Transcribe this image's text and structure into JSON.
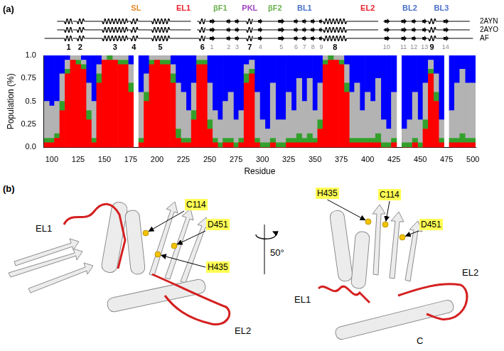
{
  "chart_data": {
    "type": "bar",
    "panel": "(a)",
    "x_label": "Residue",
    "y_label": "Population (%)",
    "stacked": true,
    "grid": false,
    "xlim": [
      92.5,
      502.5
    ],
    "xticks": [
      100,
      125,
      150,
      175,
      200,
      225,
      250,
      275,
      300,
      325,
      350,
      375,
      400,
      425,
      450,
      475,
      500
    ],
    "ylim": [
      0,
      1
    ],
    "yticks": [
      {
        "value": 0,
        "label": "0.0"
      },
      0.25,
      0.5,
      0.75,
      {
        "value": 1,
        "label": "1.0"
      }
    ],
    "x": [
      95,
      100,
      105,
      110,
      115,
      120,
      125,
      130,
      135,
      140,
      145,
      150,
      155,
      160,
      165,
      170,
      175,
      180,
      185,
      190,
      195,
      200,
      205,
      210,
      215,
      220,
      225,
      230,
      235,
      240,
      245,
      250,
      255,
      260,
      265,
      270,
      275,
      280,
      285,
      290,
      295,
      300,
      305,
      310,
      315,
      320,
      325,
      330,
      335,
      340,
      345,
      350,
      355,
      360,
      365,
      370,
      375,
      380,
      385,
      390,
      395,
      400,
      405,
      410,
      415,
      420,
      425,
      430,
      435,
      440,
      445,
      450,
      455,
      460,
      465,
      470,
      475,
      480,
      485,
      490,
      495,
      500
    ],
    "series": [
      {
        "color": "#ff0000",
        "values": [
          0.05,
          0.05,
          0.1,
          0.4,
          0.8,
          0.95,
          0.9,
          0.85,
          0.3,
          0.05,
          0.7,
          0.95,
          0.95,
          0.95,
          0.9,
          0.9,
          0.6,
          null,
          0.05,
          0.5,
          0.9,
          0.95,
          0.9,
          0.9,
          0.7,
          0.1,
          0.05,
          0.05,
          0.3,
          0.9,
          0.9,
          0.2,
          0.05,
          0,
          0.05,
          0.05,
          0,
          0.05,
          0.7,
          0.8,
          0.05,
          0,
          0,
          0.05,
          0,
          0,
          0.05,
          0.05,
          0.05,
          0.05,
          0.05,
          0.05,
          0.2,
          0.9,
          0.95,
          0.95,
          0.9,
          0.6,
          0.05,
          0.05,
          0.05,
          0.05,
          0.05,
          0.05,
          0,
          0,
          0.05,
          null,
          0,
          0,
          0.05,
          0,
          0.2,
          0.8,
          0.5,
          0.05,
          null,
          0.05,
          0.05,
          0.05,
          0.05,
          0.05
        ]
      },
      {
        "color": "#33a02c",
        "values": [
          0.05,
          0.05,
          0.05,
          0.1,
          0.05,
          0,
          0.05,
          0.05,
          0.1,
          0.05,
          0.1,
          0,
          0.05,
          0,
          0.05,
          0.05,
          0.1,
          null,
          0.05,
          0.1,
          0.05,
          0,
          0.05,
          0.05,
          0.1,
          0.1,
          0.05,
          0.05,
          0.1,
          0.05,
          0.05,
          0.1,
          0.05,
          0.05,
          0.05,
          0.05,
          0.05,
          0.05,
          0.1,
          0.05,
          0.05,
          0.05,
          0.05,
          0.05,
          0.05,
          0.05,
          0.05,
          0.05,
          0.1,
          0.05,
          0.1,
          0.05,
          0.1,
          0.05,
          0.05,
          0,
          0.05,
          0.1,
          0.05,
          0.05,
          0.05,
          0.05,
          0.05,
          0.1,
          0.05,
          0.05,
          0.05,
          null,
          0.05,
          0.05,
          0.05,
          0.05,
          0.1,
          0.05,
          0.1,
          0.05,
          null,
          0.05,
          0.05,
          0.1,
          0.05,
          0.05
        ]
      },
      {
        "color": "#b3b3b3",
        "values": [
          0.4,
          0.35,
          0.35,
          0.3,
          0.1,
          0.05,
          0.05,
          0.05,
          0.3,
          0.4,
          0.1,
          0.05,
          0,
          0.05,
          0.05,
          0.05,
          0.2,
          null,
          0.5,
          0.2,
          0.05,
          0.05,
          0.05,
          0.05,
          0.1,
          0.5,
          0.5,
          0.3,
          0.3,
          0.05,
          0.05,
          0.4,
          0.3,
          0.25,
          0.4,
          0.5,
          0.25,
          0.3,
          0.1,
          0.1,
          0.5,
          0.25,
          0.15,
          0.6,
          0.25,
          0.25,
          0.5,
          0.3,
          0.6,
          0.4,
          0.6,
          0.3,
          0.4,
          0.05,
          0,
          0.05,
          0.05,
          0.2,
          0.5,
          0.6,
          0.3,
          0.5,
          0.4,
          0.6,
          0.25,
          0.15,
          0.5,
          null,
          0.15,
          0.25,
          0.5,
          0.25,
          0.4,
          0.1,
          0.2,
          0.2,
          null,
          0.3,
          0.6,
          0.7,
          0.6,
          0.6
        ]
      },
      {
        "color": "#0000ff",
        "values": [
          0.5,
          0.55,
          0.5,
          0.2,
          0.05,
          0,
          0,
          0.05,
          0.3,
          0.5,
          0.1,
          0,
          0,
          0,
          0,
          0,
          0.1,
          null,
          0.4,
          0.2,
          0,
          0,
          0,
          0,
          0.1,
          0.3,
          0.4,
          0.6,
          0.3,
          0,
          0,
          0.3,
          0.6,
          0.7,
          0.5,
          0.4,
          0.7,
          0.6,
          0.1,
          0.05,
          0.4,
          0.7,
          0.8,
          0.3,
          0.7,
          0.7,
          0.4,
          0.6,
          0.25,
          0.5,
          0.25,
          0.6,
          0.3,
          0,
          0,
          0,
          0,
          0.1,
          0.4,
          0.3,
          0.6,
          0.4,
          0.5,
          0.25,
          0.7,
          0.8,
          0.4,
          null,
          0.8,
          0.7,
          0.4,
          0.7,
          0.3,
          0.05,
          0.2,
          0.7,
          null,
          0.6,
          0.3,
          0.15,
          0.3,
          0.3
        ]
      }
    ],
    "regions": [
      {
        "label": "SL",
        "residue": 180,
        "color": "#e8892b"
      },
      {
        "label": "EL1",
        "residue": 225,
        "color": "#e8202a"
      },
      {
        "label": "βF1",
        "residue": 260,
        "color": "#6ab04c"
      },
      {
        "label": "PKL",
        "residue": 288,
        "color": "#a040c0"
      },
      {
        "label": "βF2",
        "residue": 312,
        "color": "#6ab04c"
      },
      {
        "label": "BL1",
        "residue": 340,
        "color": "#4a70c8"
      },
      {
        "label": "EL2",
        "residue": 400,
        "color": "#e8202a"
      },
      {
        "label": "BL2",
        "residue": 440,
        "color": "#4a70c8"
      },
      {
        "label": "BL3",
        "residue": 470,
        "color": "#4a70c8"
      }
    ],
    "tracks": [
      {
        "name": "2AYN",
        "ranges": [
          [
            105,
            232
          ],
          [
            238,
            410
          ],
          [
            415,
            497
          ]
        ]
      },
      {
        "name": "2AYO",
        "ranges": [
          [
            105,
            232
          ],
          [
            238,
            410
          ],
          [
            415,
            497
          ]
        ]
      },
      {
        "name": "AF",
        "ranges": [
          [
            93,
            500
          ]
        ]
      }
    ],
    "helices": [
      [
        112,
        120
      ],
      [
        124,
        131
      ],
      [
        148,
        172
      ],
      [
        175,
        182
      ],
      [
        195,
        212
      ],
      [
        240,
        246
      ],
      [
        285,
        291
      ],
      [
        358,
        380
      ],
      [
        458,
        465
      ]
    ],
    "strands": [
      [
        250,
        255
      ],
      [
        266,
        270
      ],
      [
        274,
        278
      ],
      [
        296,
        300
      ],
      [
        315,
        321
      ],
      [
        330,
        334
      ],
      [
        338,
        342
      ],
      [
        346,
        350
      ],
      [
        354,
        357
      ],
      [
        416,
        421
      ],
      [
        432,
        437
      ],
      [
        442,
        446
      ],
      [
        452,
        456
      ],
      [
        472,
        477
      ]
    ],
    "helix_labels": [
      {
        "label": "1",
        "residue": 116
      },
      {
        "label": "2",
        "residue": 127
      },
      {
        "label": "3",
        "residue": 160
      },
      {
        "label": "4",
        "residue": 178
      },
      {
        "label": "5",
        "residue": 203
      },
      {
        "label": "6",
        "residue": 243
      },
      {
        "label": "7",
        "residue": 288
      },
      {
        "label": "8",
        "residue": 369
      },
      {
        "label": "9",
        "residue": 461
      }
    ],
    "strand_labels": [
      {
        "label": "1",
        "residue": 252
      },
      {
        "label": "2",
        "residue": 268
      },
      {
        "label": "3",
        "residue": 276
      },
      {
        "label": "4",
        "residue": 298
      },
      {
        "label": "5",
        "residue": 318
      },
      {
        "label": "6",
        "residue": 332
      },
      {
        "label": "7",
        "residue": 340
      },
      {
        "label": "8",
        "residue": 348
      },
      {
        "label": "9",
        "residue": 356
      },
      {
        "label": "10",
        "residue": 418
      },
      {
        "label": "11",
        "residue": 434
      },
      {
        "label": "12",
        "residue": 444
      },
      {
        "label": "13",
        "residue": 454
      },
      {
        "label": "14",
        "residue": 474
      }
    ]
  },
  "panel_b": {
    "label": "(b)",
    "rotation": "50°",
    "views": [
      {
        "loops": [
          "EL1",
          "EL2"
        ],
        "residues": [
          "C114",
          "D451",
          "H435"
        ]
      },
      {
        "loops": [
          "EL1",
          "EL2"
        ],
        "residues": [
          "H435",
          "C114",
          "D451"
        ],
        "terminus": "C"
      }
    ]
  }
}
